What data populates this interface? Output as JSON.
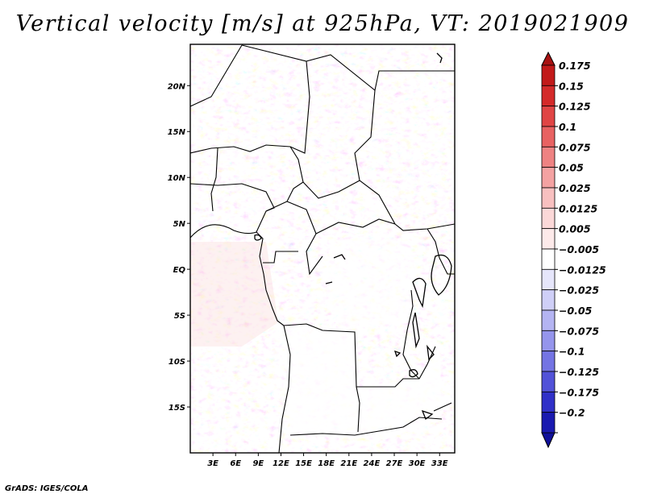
{
  "title": "Vertical velocity [m/s] at 925hPa, VT: 2019021909",
  "credit": "GrADS: IGES/COLA",
  "map": {
    "lon_range": [
      0,
      35
    ],
    "lat_range": [
      -20,
      24.5
    ],
    "lat_labels": [
      {
        "lat": 20,
        "label": "20N"
      },
      {
        "lat": 15,
        "label": "15N"
      },
      {
        "lat": 10,
        "label": "10N"
      },
      {
        "lat": 5,
        "label": "5N"
      },
      {
        "lat": 0,
        "label": "EQ"
      },
      {
        "lat": -5,
        "label": "5S"
      },
      {
        "lat": -10,
        "label": "10S"
      },
      {
        "lat": -15,
        "label": "15S"
      }
    ],
    "lon_labels": [
      {
        "lon": 3,
        "label": "3E"
      },
      {
        "lon": 6,
        "label": "6E"
      },
      {
        "lon": 9,
        "label": "9E"
      },
      {
        "lon": 12,
        "label": "12E"
      },
      {
        "lon": 15,
        "label": "15E"
      },
      {
        "lon": 18,
        "label": "18E"
      },
      {
        "lon": 21,
        "label": "21E"
      },
      {
        "lon": 24,
        "label": "24E"
      },
      {
        "lon": 27,
        "label": "27E"
      },
      {
        "lon": 30,
        "label": "30E"
      },
      {
        "lon": 33,
        "label": "33E"
      }
    ]
  },
  "colorbar": {
    "levels": [
      {
        "label": "0.175",
        "color": "#c21a1a"
      },
      {
        "label": "0.15",
        "color": "#d42a2a"
      },
      {
        "label": "0.125",
        "color": "#e04545"
      },
      {
        "label": "0.1",
        "color": "#e86262"
      },
      {
        "label": "0.075",
        "color": "#ee8282"
      },
      {
        "label": "0.05",
        "color": "#f4a2a2"
      },
      {
        "label": "0.025",
        "color": "#f8c0c0"
      },
      {
        "label": "0.0125",
        "color": "#fbd8d8"
      },
      {
        "label": "0.005",
        "color": "#fdeaea"
      },
      {
        "label": "−0.005",
        "color": "#ffffff"
      },
      {
        "label": "−0.0125",
        "color": "#e6e6fb"
      },
      {
        "label": "−0.025",
        "color": "#cfcff7"
      },
      {
        "label": "−0.05",
        "color": "#b4b4f2"
      },
      {
        "label": "−0.075",
        "color": "#9595ec"
      },
      {
        "label": "−0.1",
        "color": "#7474e3"
      },
      {
        "label": "−0.125",
        "color": "#5252d8"
      },
      {
        "label": "−0.175",
        "color": "#3030c8"
      },
      {
        "label": "−0.2",
        "color": "#1a1ab0"
      }
    ],
    "top_extension_color": "#a81212",
    "bottom_extension_color": "#10109a"
  }
}
